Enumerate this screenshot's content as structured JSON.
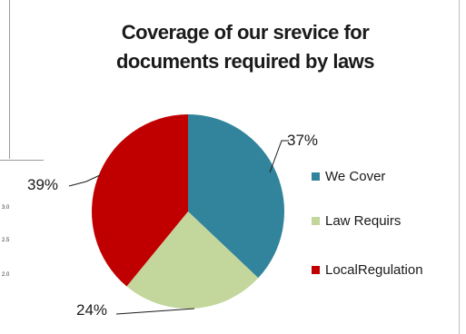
{
  "chart_data": {
    "type": "pie",
    "title_lines": [
      "Coverage of our srevice for",
      "documents required by laws"
    ],
    "slices": [
      {
        "label": "We Cover",
        "value": 37,
        "display": "37%",
        "color": "#31849B"
      },
      {
        "label": "Law Requirs",
        "value": 24,
        "display": "24%",
        "color": "#C3D69B"
      },
      {
        "label": "LocalRegulation",
        "value": 39,
        "display": "39%",
        "color": "#C00000"
      }
    ],
    "legend_position": "right"
  },
  "background_chart": {
    "tick_labels": [
      "3.0",
      "2.5",
      "2.0"
    ]
  }
}
